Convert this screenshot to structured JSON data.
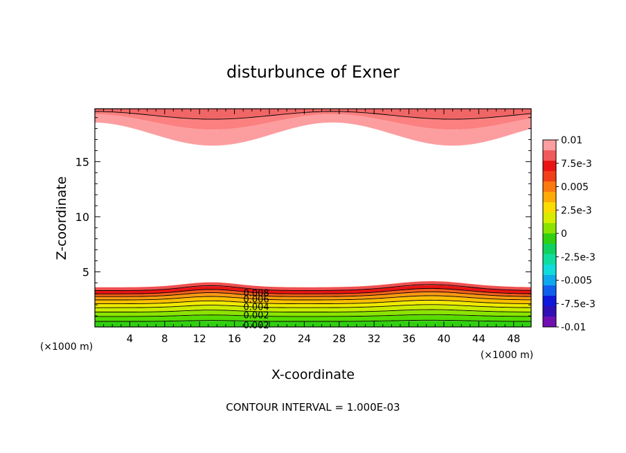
{
  "chart_data": {
    "type": "heatmap",
    "subtype": "filled-contour",
    "title": "disturbunce of Exner",
    "xlabel": "X-coordinate",
    "ylabel": "Z-coordinate",
    "x_unit_label": "(×1000 m)",
    "x_unit_label_right": "(×1000 m)",
    "xlim": [
      0,
      50
    ],
    "ylim": [
      0,
      19.8
    ],
    "xticks": [
      "4",
      "8",
      "12",
      "16",
      "20",
      "24",
      "28",
      "32",
      "36",
      "40",
      "44",
      "48"
    ],
    "xtick_values": [
      4,
      8,
      12,
      16,
      20,
      24,
      28,
      32,
      36,
      40,
      44,
      48
    ],
    "yticks": [
      "5",
      "10",
      "15"
    ],
    "ytick_values": [
      5,
      10,
      15
    ],
    "footer": "CONTOUR INTERVAL = 1.000E-03",
    "contour_interval": 0.001,
    "colorbar": {
      "labels": [
        "0.01",
        "7.5e-3",
        "0.005",
        "2.5e-3",
        "0",
        "-2.5e-3",
        "-0.005",
        "-7.5e-3",
        "-0.01"
      ],
      "values": [
        0.01,
        0.0075,
        0.005,
        0.0025,
        0,
        -0.0025,
        -0.005,
        -0.0075,
        -0.01
      ],
      "colors": [
        "#fc9ea0",
        "#f05a5a",
        "#ea1414",
        "#f04018",
        "#fa7a10",
        "#ffaa08",
        "#fcdc00",
        "#d8ec00",
        "#8ae400",
        "#30d010",
        "#10d060",
        "#10dca0",
        "#10dcdc",
        "#10a8ec",
        "#1060ec",
        "#1018dc",
        "#3010b4",
        "#7010b0"
      ]
    },
    "contour_labels": [
      "0.008",
      "0.006",
      "0.004",
      "0.002",
      "0.002"
    ],
    "bottom_band": {
      "levels": [
        0.0002,
        0.001,
        0.002,
        0.003,
        0.004,
        0.005,
        0.006,
        0.007,
        0.008,
        0.009
      ],
      "level_heights_km": [
        0.0,
        0.5,
        0.95,
        1.35,
        1.75,
        2.1,
        2.45,
        2.75,
        3.0,
        3.3,
        3.6
      ],
      "bump_centers_km": [
        13.3,
        38.5
      ],
      "bump_amplitudes_km": [
        0.45,
        0.55
      ]
    },
    "top_band": {
      "level_heights_km": [
        19.8,
        19.2,
        18.6,
        17.5
      ],
      "wave_period_km": 27.5
    },
    "colors": {
      "band_colors_bottom": [
        "#30d010",
        "#56dc00",
        "#8ae400",
        "#c8ec00",
        "#f0ea00",
        "#fcc000",
        "#fa9a10",
        "#f26018",
        "#ea1414",
        "#f05050",
        "#fc9ea0"
      ],
      "band_colors_top": [
        "#f06666",
        "#fc8080",
        "#fc9ea0"
      ]
    }
  }
}
